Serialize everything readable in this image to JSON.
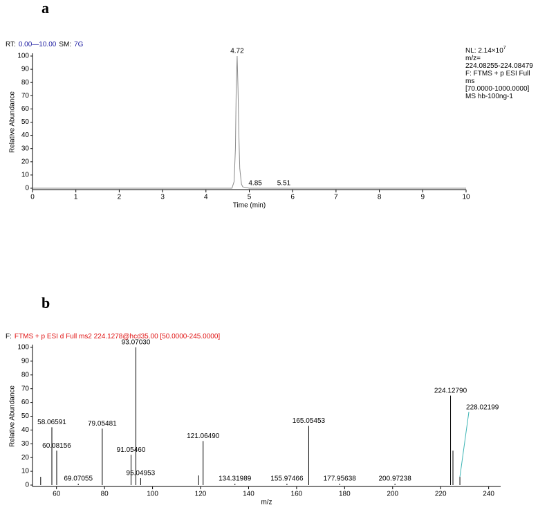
{
  "chart_data": [
    {
      "type": "line",
      "panel_label": "a",
      "header": [
        {
          "text": "RT:",
          "color": "#000000"
        },
        {
          "text": "0.00—10.00",
          "color": "#1a1aa0"
        },
        {
          "text": "SM:",
          "color": "#000000"
        },
        {
          "text": "7G",
          "color": "#1a1aa0"
        }
      ],
      "info": [
        "NL: 2.14×10",
        "m/z=",
        "224.08255-224.08479",
        "F: FTMS + p ESI Full",
        "ms",
        "[70.0000-1000.0000]",
        "MS hb-100ng-1"
      ],
      "info_exponent": "7",
      "y_label": "Relative Abundance",
      "x_label": "Time (min)",
      "color": "#8a8a8a",
      "x": [
        0,
        4.6,
        4.65,
        4.68,
        4.7,
        4.72,
        4.74,
        4.76,
        4.78,
        4.82,
        4.85,
        5.0,
        5.51,
        10
      ],
      "values": [
        0,
        0,
        5,
        30,
        80,
        100,
        75,
        40,
        15,
        3,
        1,
        0,
        0,
        0
      ],
      "peaks": [
        {
          "x": 4.72,
          "y": 100
        },
        {
          "x": 4.85,
          "y": 0
        },
        {
          "x": 5.51,
          "y": 0
        }
      ],
      "xlim": [
        0,
        10
      ],
      "xticks": [
        0,
        1,
        2,
        3,
        4,
        5,
        6,
        7,
        8,
        9,
        10
      ],
      "ylim": [
        0,
        100
      ],
      "yticks": [
        0,
        10,
        20,
        30,
        40,
        50,
        60,
        70,
        80,
        90,
        100
      ]
    },
    {
      "type": "stem",
      "panel_label": "b",
      "header": [
        {
          "text": "F:",
          "color": "#000000"
        },
        {
          "text": "FTMS + p ESI d Full ms2 224.1278@hcd35.00 [50.0000-245.0000]",
          "color": "#e01010"
        }
      ],
      "y_label": "Relative Abundance",
      "x_label": "m/z",
      "color": "#000000",
      "leader_color": "#3cb4b4",
      "x": [
        53.4,
        58.06591,
        60.08156,
        69.07055,
        79.05481,
        91.0546,
        93.0703,
        95.04953,
        119.2,
        121.0649,
        134.31989,
        155.97466,
        165.05453,
        177.95638,
        200.97238,
        224.1279,
        225.13,
        228.02199
      ],
      "values": [
        6,
        42,
        25,
        1,
        41,
        22,
        100,
        5,
        7,
        32,
        1,
        1,
        43,
        1,
        1,
        65,
        25,
        6
      ],
      "value_labels": [
        null,
        "58.06591",
        "60.08156",
        "69.07055",
        "79.05481",
        "91.05460",
        "93.07030",
        "95.04953",
        null,
        "121.06490",
        "134.31989",
        "155.97466",
        "165.05453",
        "177.95638",
        "200.97238",
        "224.12790",
        null,
        "228.02199"
      ],
      "xlim": [
        50,
        245
      ],
      "xticks": [
        60,
        80,
        100,
        120,
        140,
        160,
        180,
        200,
        220,
        240
      ],
      "ylim": [
        0,
        100
      ],
      "yticks": [
        0,
        10,
        20,
        30,
        40,
        50,
        60,
        70,
        80,
        90,
        100
      ]
    }
  ]
}
